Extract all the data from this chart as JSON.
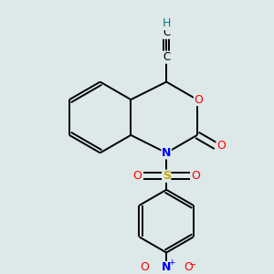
{
  "bg_color": "#dde8e8",
  "bond_color": "#000000",
  "atom_colors": {
    "O": "#ff0000",
    "N": "#0000ff",
    "S": "#ccaa00",
    "H": "#008080",
    "C": "#000000"
  },
  "lw": 1.4,
  "figsize": [
    3.0,
    3.0
  ],
  "dpi": 100
}
